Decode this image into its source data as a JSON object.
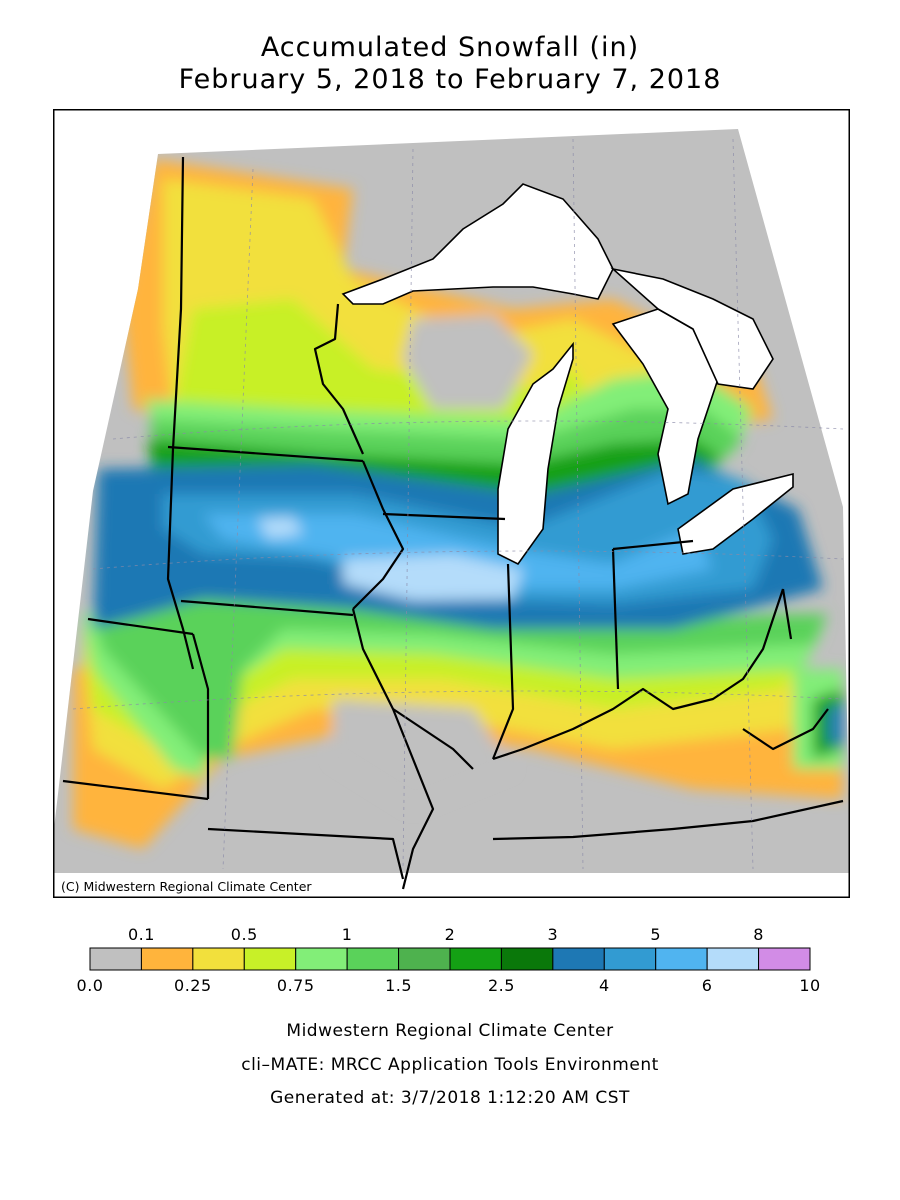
{
  "title": {
    "line1": "Accumulated Snowfall (in)",
    "line2": "February 5, 2018 to February 7, 2018"
  },
  "map": {
    "copyright": "(C) Midwestern Regional Climate Center",
    "variable": "Accumulated snowfall",
    "units": "in"
  },
  "legend": {
    "bins": [
      {
        "color": "#c0c0c0"
      },
      {
        "color": "#ffb43c"
      },
      {
        "color": "#f2e03c"
      },
      {
        "color": "#c8f028"
      },
      {
        "color": "#82ee78"
      },
      {
        "color": "#5ad25a"
      },
      {
        "color": "#4eb24e"
      },
      {
        "color": "#14a014"
      },
      {
        "color": "#0a780a"
      },
      {
        "color": "#1e78b4"
      },
      {
        "color": "#329bd2"
      },
      {
        "color": "#50b4f0"
      },
      {
        "color": "#b4dcfa"
      },
      {
        "color": "#d28ce6"
      }
    ],
    "top_labels": [
      {
        "text": "0.1",
        "edge": 1
      },
      {
        "text": "0.5",
        "edge": 3
      },
      {
        "text": "1",
        "edge": 5
      },
      {
        "text": "2",
        "edge": 7
      },
      {
        "text": "3",
        "edge": 9
      },
      {
        "text": "5",
        "edge": 11
      },
      {
        "text": "8",
        "edge": 13
      }
    ],
    "bottom_labels": [
      {
        "text": "0.0",
        "edge": 0
      },
      {
        "text": "0.25",
        "edge": 2
      },
      {
        "text": "0.75",
        "edge": 4
      },
      {
        "text": "1.5",
        "edge": 6
      },
      {
        "text": "2.5",
        "edge": 8
      },
      {
        "text": "4",
        "edge": 10
      },
      {
        "text": "6",
        "edge": 12
      },
      {
        "text": "10",
        "edge": 14
      }
    ]
  },
  "credits": {
    "line1": "Midwestern Regional Climate Center",
    "line2": "cli–MATE: MRCC Application Tools Environment",
    "line3": "Generated at: 3/7/2018 1:12:20 AM CST"
  }
}
